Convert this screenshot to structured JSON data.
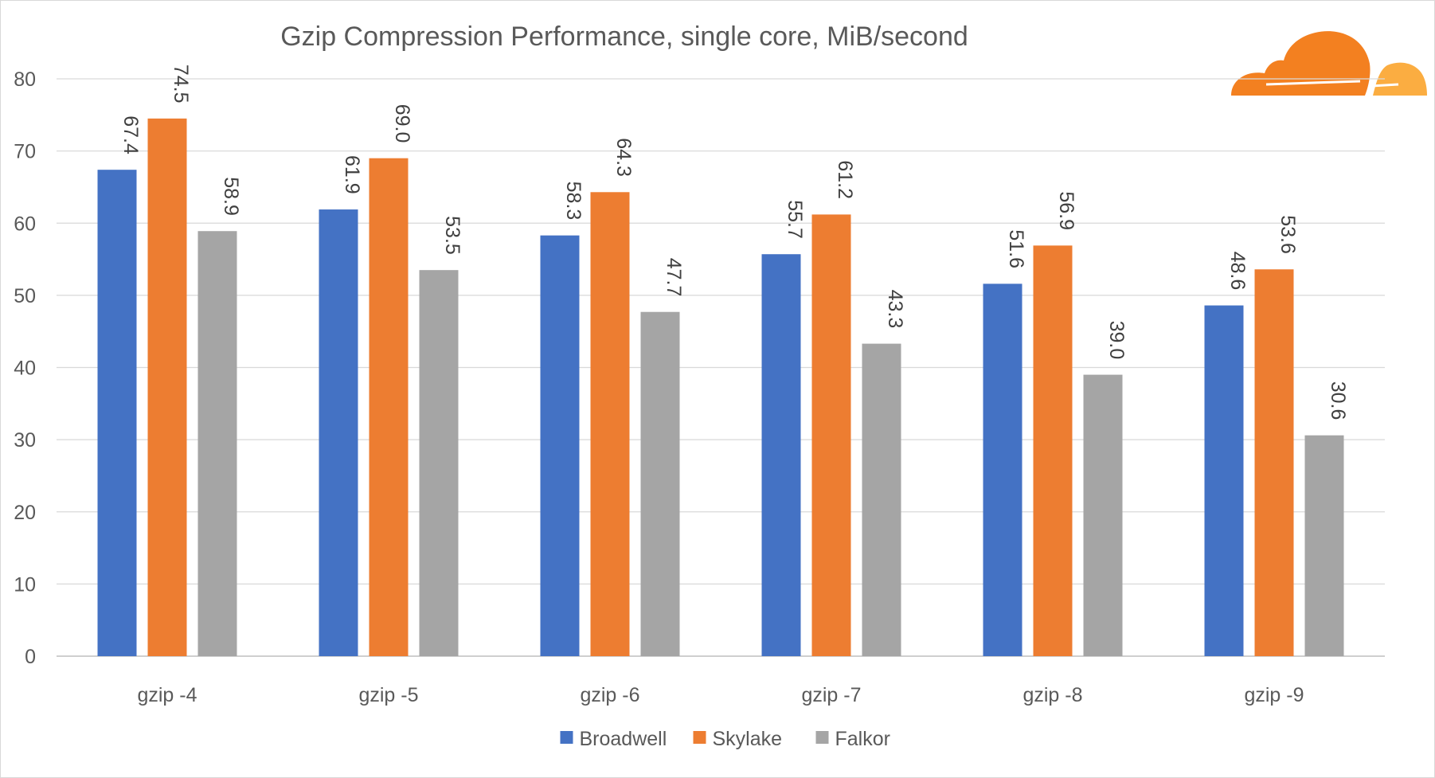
{
  "chart_data": {
    "type": "bar",
    "title": "Gzip Compression Performance, single core, MiB/second",
    "xlabel": "",
    "ylabel": "",
    "categories": [
      "gzip -4",
      "gzip -5",
      "gzip -6",
      "gzip -7",
      "gzip -8",
      "gzip -9"
    ],
    "series": [
      {
        "name": "Broadwell",
        "color": "#4472c4",
        "values": [
          67.4,
          61.9,
          58.3,
          55.7,
          51.6,
          48.6
        ],
        "labels": [
          "67.4",
          "61.9",
          "58.3",
          "55.7",
          "51.6",
          "48.6"
        ]
      },
      {
        "name": "Skylake",
        "color": "#ed7d31",
        "values": [
          74.5,
          69.0,
          64.3,
          61.2,
          56.9,
          53.6
        ],
        "labels": [
          "74.5",
          "69.0",
          "64.3",
          "61.2",
          "56.9",
          "53.6"
        ]
      },
      {
        "name": "Falkor",
        "color": "#a5a5a5",
        "values": [
          58.9,
          53.5,
          47.7,
          43.3,
          39.0,
          30.6
        ],
        "labels": [
          "58.9",
          "53.5",
          "47.7",
          "43.3",
          "39.0",
          "30.6"
        ]
      }
    ],
    "ylim": [
      0,
      80
    ],
    "yticks": [
      0,
      10,
      20,
      30,
      40,
      50,
      60,
      70,
      80
    ],
    "grid": true,
    "legend_position": "bottom",
    "data_labels": "rotated-vertical",
    "logo": "cloudflare-cloud-icon"
  }
}
